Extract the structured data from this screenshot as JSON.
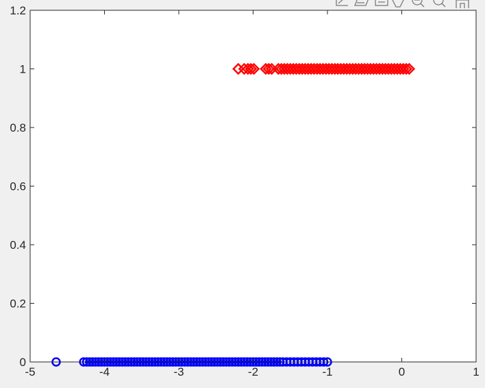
{
  "figure": {
    "background": "#f0f0f0",
    "axes_background": "#ffffff"
  },
  "toolbar": {
    "icons": [
      "brush-icon",
      "data-tip-icon",
      "rotate-icon",
      "pan-icon",
      "zoom-in-icon",
      "zoom-out-icon",
      "home-icon"
    ]
  },
  "chart_data": {
    "type": "scatter",
    "title": "",
    "xlabel": "",
    "ylabel": "",
    "xlim": [
      -5,
      1
    ],
    "ylim": [
      0,
      1.2
    ],
    "x_ticks": [
      "-5",
      "-4",
      "-3",
      "-2",
      "-1",
      "0",
      "1"
    ],
    "y_ticks": [
      "0",
      "0.2",
      "0.4",
      "0.6",
      "0.8",
      "1",
      "1.2"
    ],
    "grid": false,
    "legend": "none",
    "series": [
      {
        "marker": "circle",
        "color": "#0000ff",
        "points": [
          [
            -4.65,
            0
          ],
          [
            -4.28,
            0
          ],
          [
            -4.24,
            0
          ],
          [
            -4.2,
            0
          ],
          [
            -4.16,
            0
          ],
          [
            -4.12,
            0
          ],
          [
            -4.08,
            0
          ],
          [
            -4.04,
            0
          ],
          [
            -4.0,
            0
          ],
          [
            -3.96,
            0
          ],
          [
            -3.92,
            0
          ],
          [
            -3.88,
            0
          ],
          [
            -3.84,
            0
          ],
          [
            -3.8,
            0
          ],
          [
            -3.76,
            0
          ],
          [
            -3.72,
            0
          ],
          [
            -3.68,
            0
          ],
          [
            -3.64,
            0
          ],
          [
            -3.6,
            0
          ],
          [
            -3.56,
            0
          ],
          [
            -3.52,
            0
          ],
          [
            -3.48,
            0
          ],
          [
            -3.44,
            0
          ],
          [
            -3.4,
            0
          ],
          [
            -3.36,
            0
          ],
          [
            -3.32,
            0
          ],
          [
            -3.28,
            0
          ],
          [
            -3.24,
            0
          ],
          [
            -3.2,
            0
          ],
          [
            -3.16,
            0
          ],
          [
            -3.12,
            0
          ],
          [
            -3.08,
            0
          ],
          [
            -3.04,
            0
          ],
          [
            -3.0,
            0
          ],
          [
            -2.96,
            0
          ],
          [
            -2.92,
            0
          ],
          [
            -2.88,
            0
          ],
          [
            -2.84,
            0
          ],
          [
            -2.8,
            0
          ],
          [
            -2.76,
            0
          ],
          [
            -2.72,
            0
          ],
          [
            -2.68,
            0
          ],
          [
            -2.64,
            0
          ],
          [
            -2.6,
            0
          ],
          [
            -2.56,
            0
          ],
          [
            -2.52,
            0
          ],
          [
            -2.48,
            0
          ],
          [
            -2.44,
            0
          ],
          [
            -2.4,
            0
          ],
          [
            -2.36,
            0
          ],
          [
            -2.32,
            0
          ],
          [
            -2.28,
            0
          ],
          [
            -2.24,
            0
          ],
          [
            -2.2,
            0
          ],
          [
            -2.16,
            0
          ],
          [
            -2.12,
            0
          ],
          [
            -2.08,
            0
          ],
          [
            -2.04,
            0
          ],
          [
            -2.0,
            0
          ],
          [
            -1.96,
            0
          ],
          [
            -1.92,
            0
          ],
          [
            -1.88,
            0
          ],
          [
            -1.84,
            0
          ],
          [
            -1.8,
            0
          ],
          [
            -1.76,
            0
          ],
          [
            -1.72,
            0
          ],
          [
            -1.68,
            0
          ],
          [
            -1.64,
            0
          ],
          [
            -1.6,
            0
          ],
          [
            -1.55,
            0
          ],
          [
            -1.5,
            0
          ],
          [
            -1.45,
            0
          ],
          [
            -1.4,
            0
          ],
          [
            -1.35,
            0
          ],
          [
            -1.3,
            0
          ],
          [
            -1.25,
            0
          ],
          [
            -1.2,
            0
          ],
          [
            -1.15,
            0
          ],
          [
            -1.1,
            0
          ],
          [
            -1.05,
            0
          ],
          [
            -1.0,
            0
          ]
        ]
      },
      {
        "marker": "diamond",
        "color": "#ff0000",
        "points": [
          [
            -2.2,
            1
          ],
          [
            -2.12,
            1
          ],
          [
            -2.07,
            1
          ],
          [
            -2.03,
            1
          ],
          [
            -1.99,
            1
          ],
          [
            -1.83,
            1
          ],
          [
            -1.79,
            1
          ],
          [
            -1.75,
            1
          ],
          [
            -1.66,
            1
          ],
          [
            -1.62,
            1
          ],
          [
            -1.58,
            1
          ],
          [
            -1.54,
            1
          ],
          [
            -1.5,
            1
          ],
          [
            -1.46,
            1
          ],
          [
            -1.42,
            1
          ],
          [
            -1.38,
            1
          ],
          [
            -1.34,
            1
          ],
          [
            -1.3,
            1
          ],
          [
            -1.26,
            1
          ],
          [
            -1.22,
            1
          ],
          [
            -1.18,
            1
          ],
          [
            -1.14,
            1
          ],
          [
            -1.1,
            1
          ],
          [
            -1.06,
            1
          ],
          [
            -1.02,
            1
          ],
          [
            -0.98,
            1
          ],
          [
            -0.94,
            1
          ],
          [
            -0.9,
            1
          ],
          [
            -0.86,
            1
          ],
          [
            -0.82,
            1
          ],
          [
            -0.78,
            1
          ],
          [
            -0.74,
            1
          ],
          [
            -0.7,
            1
          ],
          [
            -0.66,
            1
          ],
          [
            -0.62,
            1
          ],
          [
            -0.58,
            1
          ],
          [
            -0.54,
            1
          ],
          [
            -0.5,
            1
          ],
          [
            -0.46,
            1
          ],
          [
            -0.42,
            1
          ],
          [
            -0.38,
            1
          ],
          [
            -0.34,
            1
          ],
          [
            -0.3,
            1
          ],
          [
            -0.26,
            1
          ],
          [
            -0.22,
            1
          ],
          [
            -0.18,
            1
          ],
          [
            -0.14,
            1
          ],
          [
            -0.1,
            1
          ],
          [
            -0.06,
            1
          ],
          [
            -0.02,
            1
          ],
          [
            0.02,
            1
          ],
          [
            0.06,
            1
          ],
          [
            0.1,
            1
          ]
        ]
      }
    ]
  }
}
